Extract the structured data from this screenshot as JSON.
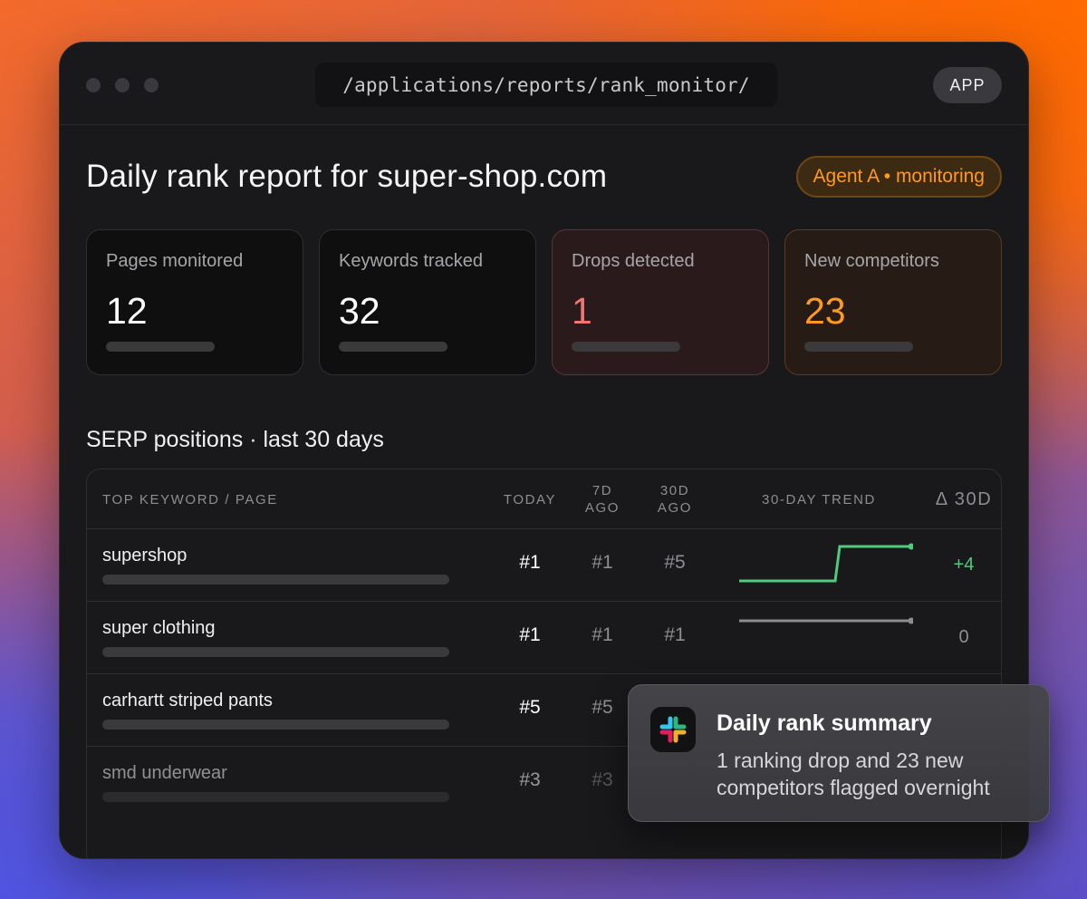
{
  "window": {
    "url": "/applications/reports/rank_monitor/",
    "app_button": "APP"
  },
  "header": {
    "title": "Daily rank report for super-shop.com",
    "agent_badge": "Agent A • monitoring"
  },
  "stats": [
    {
      "label": "Pages monitored",
      "value": "12"
    },
    {
      "label": "Keywords tracked",
      "value": "32"
    },
    {
      "label": "Drops detected",
      "value": "1"
    },
    {
      "label": "New competitors",
      "value": "23"
    }
  ],
  "section": {
    "title": "SERP positions · last 30 days"
  },
  "table": {
    "headers": {
      "keyword": "TOP KEYWORD / PAGE",
      "today": "TODAY",
      "d7": "7D AGO",
      "d30": "30D AGO",
      "trend": "30-DAY TREND",
      "delta": "Δ 30D"
    },
    "rows": [
      {
        "keyword": "supershop",
        "today": "#1",
        "d7": "#1",
        "d30": "#5",
        "delta": "+4",
        "trend_color": "#4ccc7c"
      },
      {
        "keyword": "super clothing",
        "today": "#1",
        "d7": "#1",
        "d30": "#1",
        "delta": "0",
        "trend_color": "#8d8d92"
      },
      {
        "keyword": "carhartt striped pants",
        "today": "#5",
        "d7": "#5"
      },
      {
        "keyword": "smd underwear",
        "today": "#3",
        "d7": "#3"
      }
    ]
  },
  "notification": {
    "app_icon": "slack-icon",
    "title": "Daily rank summary",
    "body": "1 ranking drop and 23 new competitors flagged overnight"
  },
  "colors": {
    "accent_orange": "#ff9a1f",
    "drop_red": "#f27474",
    "gain_green": "#4ccc7c"
  }
}
